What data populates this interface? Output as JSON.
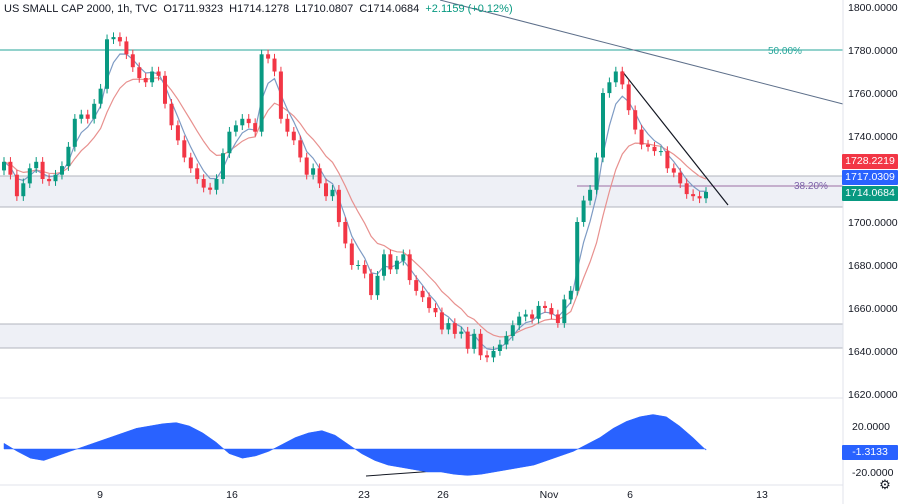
{
  "header": {
    "symbol": "US SMALL CAP 2000, 1h, TVC",
    "open": "O1711.9323",
    "high": "H1714.1278",
    "low": "L1710.0807",
    "close": "C1714.0684",
    "change": "+2.1159 (+0.12%)"
  },
  "price_axis": [
    "1800.0000",
    "1780.0000",
    "1760.0000",
    "1740.0000",
    "1720.0000",
    "1700.0000",
    "1680.0000",
    "1660.0000",
    "1640.0000",
    "1620.0000"
  ],
  "osc_axis": [
    "20.0000",
    "-20.0000"
  ],
  "time_axis": [
    "9",
    "16",
    "23",
    "26",
    "Nov",
    "6",
    "13"
  ],
  "badges": {
    "ma_red": "1728.2219",
    "ma_blue": "1717.0309",
    "last": "1714.0684",
    "osc": "-1.3133"
  },
  "fib_labels": {
    "f50": "50.00%",
    "f382": "38.20%"
  },
  "colors": {
    "up": "#089981",
    "down": "#f23645",
    "ma_fast": "#7e9bc4",
    "ma_slow": "#e8918f",
    "osc": "#2962ff",
    "fib": "#26a69a",
    "zone": "#b2b5be"
  },
  "chart_data": {
    "type": "candlestick",
    "timeframe": "1h",
    "ylim": [
      1620,
      1800
    ],
    "levels": [
      {
        "label": "50.00%",
        "value": 1780.0
      },
      {
        "label": "38.20%",
        "value": 1716.0
      }
    ],
    "zones": [
      [
        1708,
        1718
      ],
      [
        1642,
        1653
      ]
    ],
    "series": [
      {
        "name": "close",
        "values": [
          1728,
          1722,
          1712,
          1718,
          1725,
          1728,
          1720,
          1719,
          1722,
          1726,
          1735,
          1748,
          1750,
          1748,
          1755,
          1762,
          1785,
          1786,
          1784,
          1778,
          1772,
          1767,
          1765,
          1770,
          1768,
          1755,
          1745,
          1738,
          1730,
          1725,
          1720,
          1716,
          1715,
          1720,
          1732,
          1742,
          1745,
          1748,
          1746,
          1742,
          1778,
          1776,
          1770,
          1748,
          1742,
          1738,
          1730,
          1722,
          1725,
          1718,
          1712,
          1715,
          1700,
          1690,
          1680,
          1680,
          1676,
          1666,
          1675,
          1685,
          1678,
          1682,
          1685,
          1673,
          1668,
          1665,
          1660,
          1658,
          1650,
          1653,
          1648,
          1649,
          1641,
          1648,
          1638,
          1637,
          1640,
          1643,
          1647,
          1652,
          1656,
          1657,
          1655,
          1661,
          1660,
          1657,
          1653,
          1664,
          1668,
          1700,
          1710,
          1715,
          1730,
          1760,
          1765,
          1770,
          1764,
          1752,
          1743,
          1736,
          1735,
          1733,
          1733,
          1725,
          1723,
          1718,
          1713,
          1712,
          1711,
          1714
        ]
      },
      {
        "name": "oscillator",
        "values": [
          5,
          -2,
          -8,
          -10,
          -6,
          -2,
          2,
          6,
          10,
          14,
          18,
          20,
          22,
          23,
          20,
          14,
          6,
          -4,
          -8,
          -6,
          -2,
          4,
          10,
          14,
          16,
          12,
          4,
          -4,
          -10,
          -14,
          -16,
          -18,
          -20,
          -20,
          -22,
          -23,
          -22,
          -20,
          -18,
          -16,
          -14,
          -10,
          -6,
          -2,
          4,
          10,
          18,
          24,
          28,
          30,
          28,
          20,
          10,
          -1
        ]
      }
    ]
  }
}
